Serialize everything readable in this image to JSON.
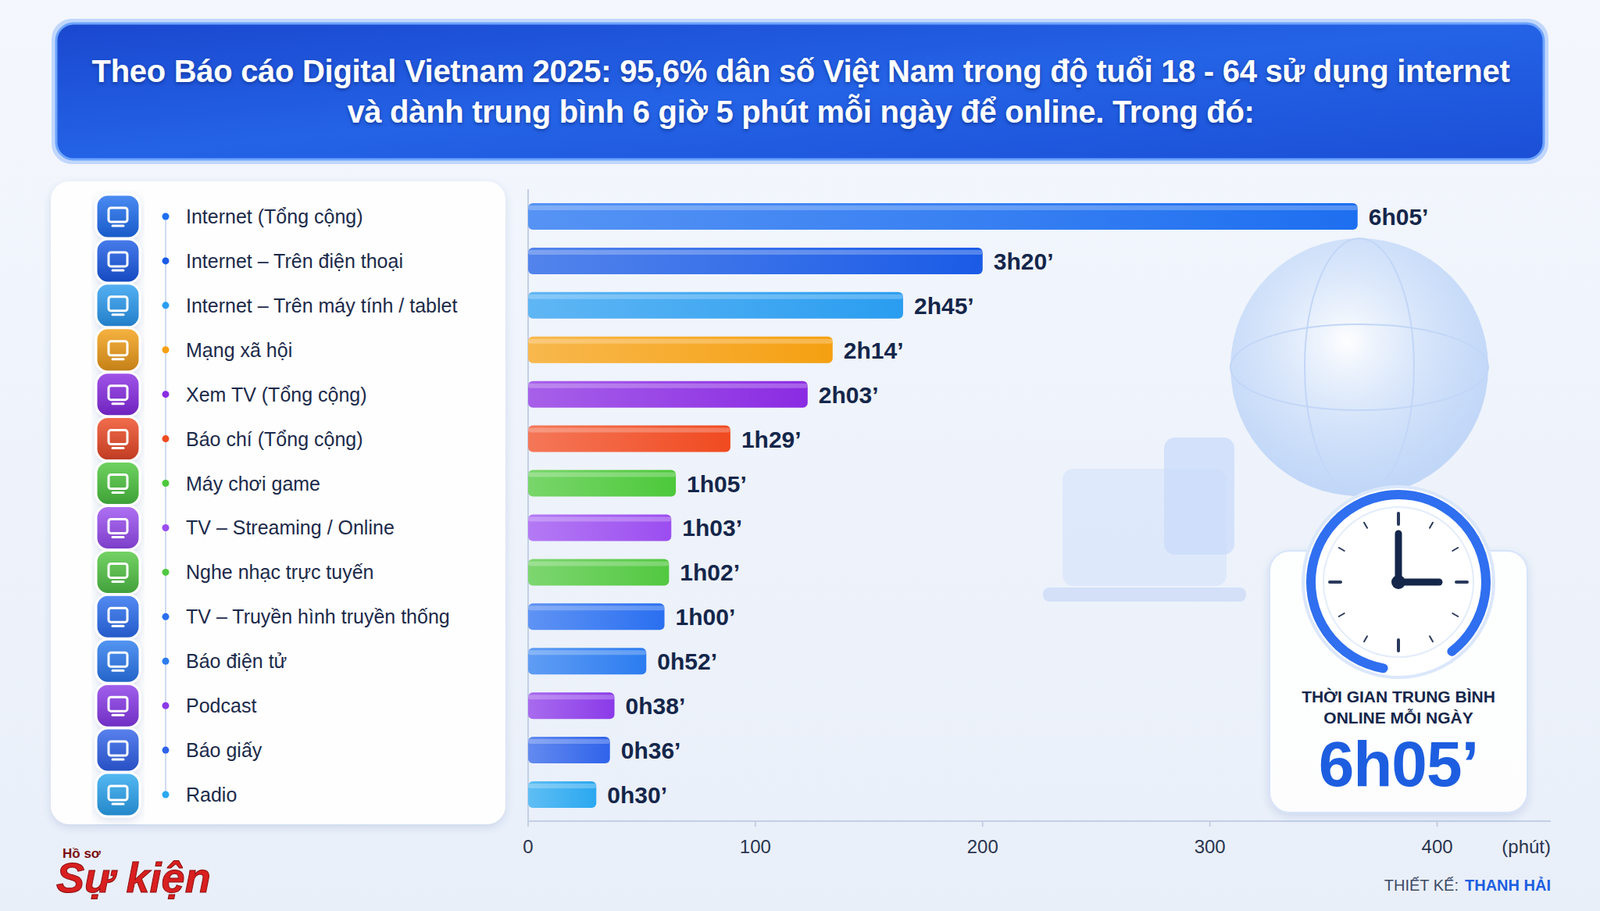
{
  "chart_data": {
    "type": "bar",
    "orientation": "horizontal",
    "title": "Theo Báo cáo Digital Vietnam 2025: 95,6% dân số Việt Nam trong độ tuổi 18 - 64 sử dụng internet và dành trung bình 6 giờ 5 phút mỗi ngày để online. Trong đó:",
    "categories": [
      "Internet (Tổng cộng)",
      "Internet – Trên điện thoại",
      "Internet – Trên máy tính / tablet",
      "Mạng xã hội",
      "Xem TV (Tổng cộng)",
      "Báo chí (Tổng cộng)",
      "Máy chơi game",
      "TV – Streaming / Online",
      "Nghe nhạc trực tuyến",
      "TV – Truyền hình truyền thống",
      "Báo điện tử",
      "Podcast",
      "Báo giấy",
      "Radio"
    ],
    "values": [
      365,
      200,
      165,
      134,
      123,
      89,
      65,
      63,
      62,
      60,
      52,
      38,
      36,
      30
    ],
    "value_labels": [
      "6h05’",
      "3h20’",
      "2h45’",
      "2h14’",
      "2h03’",
      "1h29’",
      "1h05’",
      "1h03’",
      "1h02’",
      "1h00’",
      "0h52’",
      "0h38’",
      "0h36’",
      "0h30’"
    ],
    "colors": [
      "#1e6ff0",
      "#1a5be6",
      "#2a9df0",
      "#f5a012",
      "#8a2be2",
      "#f04a20",
      "#4cc83a",
      "#9b4df0",
      "#52c840",
      "#2a6ff0",
      "#2b7cf0",
      "#8b3ae8",
      "#2f63ea",
      "#2aa8f0"
    ],
    "data_labels": true,
    "x_label": "(phút)",
    "xlim": [
      0,
      450
    ],
    "xticks": [
      0,
      100,
      200,
      300,
      400
    ],
    "grid": false,
    "annotations": [
      {
        "text": "THỜI GIAN TRUNG BÌNH ONLINE MỖI NGÀY"
      }
    ],
    "logo": {
      "small": "Hồ sơ",
      "big": "Sự kiện"
    },
    "credit": {
      "label": "THIẾT KẾ:",
      "name": "THANH HẢI"
    }
  }
}
